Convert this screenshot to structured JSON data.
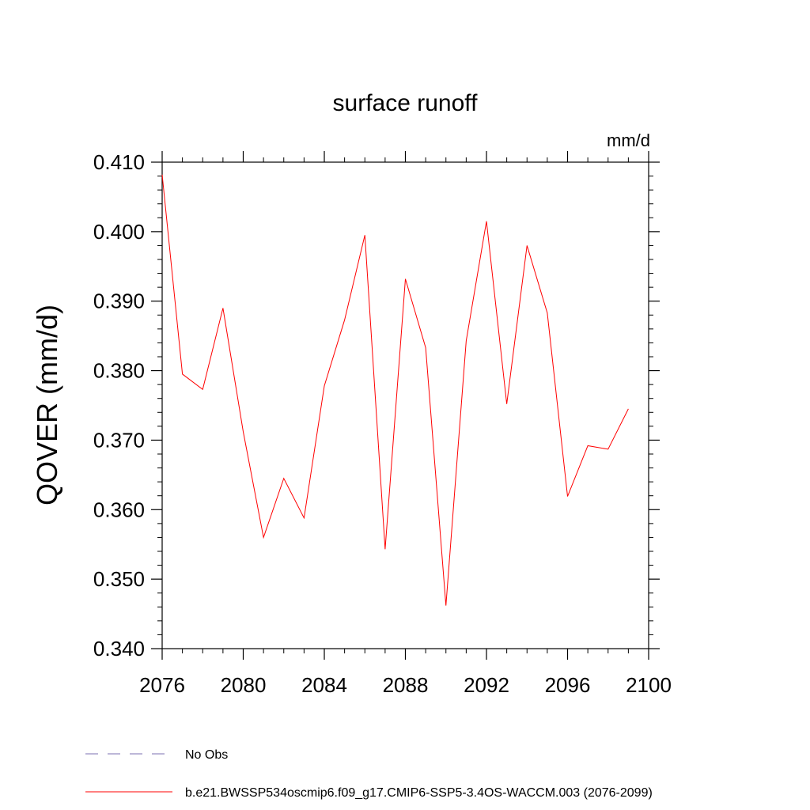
{
  "chart_data": {
    "type": "line",
    "title": "surface runoff",
    "units_label": "mm/d",
    "ylabel": "QOVER  (mm/d)",
    "xlabel": "",
    "xlim": [
      2076,
      2100
    ],
    "ylim": [
      0.34,
      0.41
    ],
    "x_ticks": [
      2076,
      2080,
      2084,
      2088,
      2092,
      2096,
      2100
    ],
    "y_ticks": [
      "0.340",
      "0.350",
      "0.360",
      "0.370",
      "0.380",
      "0.390",
      "0.400",
      "0.410"
    ],
    "grid": false,
    "legend_position": "bottom",
    "series": [
      {
        "name": "b.e21.BWSSP534oscmip6.f09_g17.CMIP6-SSP5-3.4OS-WACCM.003 (2076-2099)",
        "color": "#ff0000",
        "style": "solid",
        "x": [
          2076,
          2077,
          2078,
          2079,
          2080,
          2081,
          2082,
          2083,
          2084,
          2085,
          2086,
          2087,
          2088,
          2089,
          2090,
          2091,
          2092,
          2093,
          2094,
          2095,
          2096,
          2097,
          2098,
          2099
        ],
        "y": [
          0.4082,
          0.3795,
          0.3773,
          0.389,
          0.3712,
          0.356,
          0.3645,
          0.3588,
          0.3778,
          0.3873,
          0.3995,
          0.3543,
          0.3932,
          0.3833,
          0.3462,
          0.3843,
          0.4015,
          0.3752,
          0.398,
          0.3883,
          0.3619,
          0.3692,
          0.3687,
          0.3745
        ]
      },
      {
        "name": "No Obs",
        "color": "#7b6fb0",
        "style": "dashed",
        "x": [],
        "y": []
      }
    ]
  }
}
